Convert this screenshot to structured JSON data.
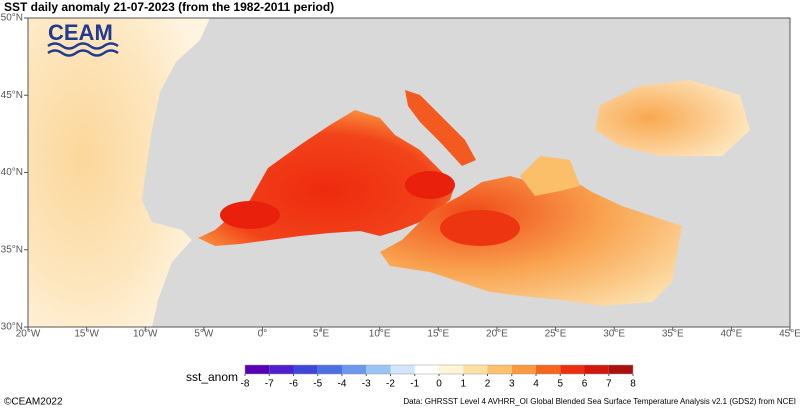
{
  "map": {
    "title": "SST daily anomaly 21-07-2023 (from the 1982-2011 period)",
    "logo": "CEAM",
    "lon_range": [
      -20,
      45
    ],
    "lat_range": [
      30,
      50
    ],
    "lon_ticks": [
      {
        "value": -20,
        "label": "20°W"
      },
      {
        "value": -15,
        "label": "15°W"
      },
      {
        "value": -10,
        "label": "10°W"
      },
      {
        "value": -5,
        "label": "5°W"
      },
      {
        "value": 0,
        "label": "0°"
      },
      {
        "value": 5,
        "label": "5°E"
      },
      {
        "value": 10,
        "label": "10°E"
      },
      {
        "value": 15,
        "label": "15°E"
      },
      {
        "value": 20,
        "label": "20°E"
      },
      {
        "value": 25,
        "label": "25°E"
      },
      {
        "value": 30,
        "label": "30°E"
      },
      {
        "value": 35,
        "label": "35°E"
      },
      {
        "value": 40,
        "label": "40°E"
      },
      {
        "value": 45,
        "label": "45°E"
      }
    ],
    "lat_ticks": [
      {
        "value": 30,
        "label": "30°N"
      },
      {
        "value": 35,
        "label": "35°N"
      },
      {
        "value": 40,
        "label": "40°N"
      },
      {
        "value": 45,
        "label": "45°N"
      },
      {
        "value": 50,
        "label": "50°N"
      }
    ],
    "colorbar": {
      "label": "sst_anom",
      "ticks": [
        -8,
        -7,
        -6,
        -5,
        -4,
        -3,
        -2,
        -1,
        0,
        1,
        2,
        3,
        4,
        5,
        6,
        7,
        8
      ],
      "colors": [
        "#5a00b4",
        "#4f1fd0",
        "#3f46dc",
        "#4c6fe6",
        "#6b98ee",
        "#9cc3f5",
        "#cfe6fb",
        "#ffffff",
        "#fff6d8",
        "#fee1a0",
        "#fcc16a",
        "#f99a3e",
        "#f4661e",
        "#ee2e10",
        "#d3170c",
        "#a8110e"
      ]
    },
    "credit": "©CEAM2022",
    "source": "Data: GHRSST Level 4 AVHRR_OI Global Blended Sea Surface Temperature Analysis v2.1 (GDS2) from NCEI"
  }
}
